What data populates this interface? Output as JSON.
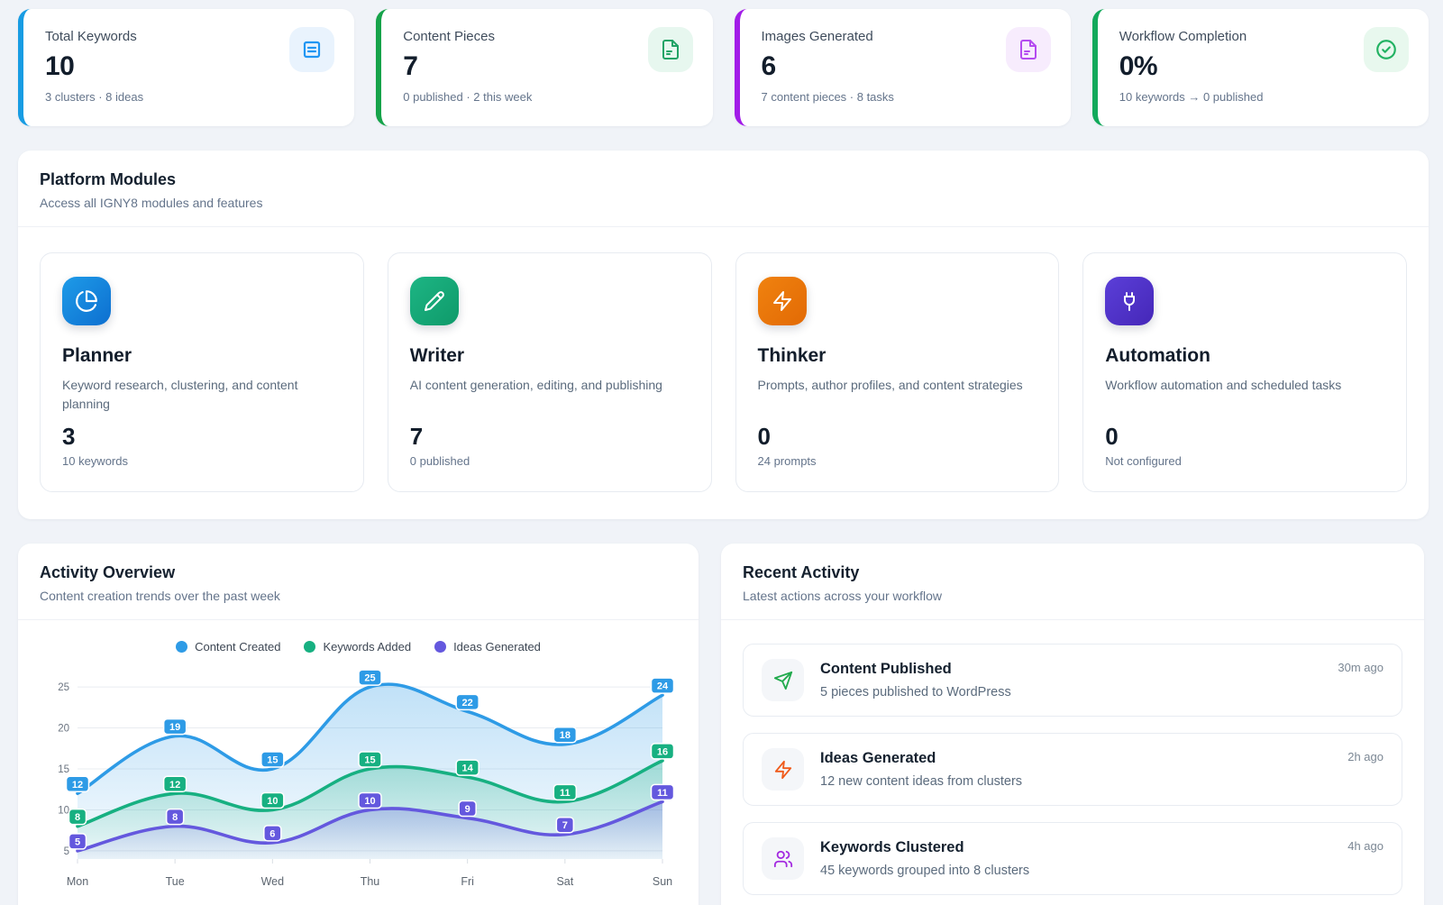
{
  "stats": [
    {
      "label": "Total Keywords",
      "value": "10",
      "caption": "3 clusters · 8 ideas",
      "accent": "#189ce3",
      "icon": "list-icon",
      "icon_color": "#2196f3",
      "icon_bg": "#e9f3fd"
    },
    {
      "label": "Content Pieces",
      "value": "7",
      "caption": "0 published · 2 this week",
      "accent": "#16a34a",
      "icon": "file-text-icon",
      "icon_color": "#21a366",
      "icon_bg": "#e7f7ef"
    },
    {
      "label": "Images Generated",
      "value": "6",
      "caption": "7 content pieces · 8 tasks",
      "accent": "#a21ce8",
      "icon": "file-text-icon",
      "icon_color": "#b44bf0",
      "icon_bg": "#f7ecfd"
    },
    {
      "label": "Workflow Completion",
      "value": "0%",
      "caption": "10 keywords → 0 published",
      "accent": "#12a95b",
      "icon": "check-circle-icon",
      "icon_color": "#22b262",
      "icon_bg": "#e8f8ee"
    }
  ],
  "modules_panel": {
    "title": "Platform Modules",
    "subtitle": "Access all IGNY8 modules and features",
    "modules": [
      {
        "name": "Planner",
        "description": "Keyword research, clustering, and content planning",
        "value": "3",
        "caption": "10 keywords",
        "icon": "pie-chart-icon",
        "gradient": [
          "#1e9be8",
          "#0d6fd0"
        ]
      },
      {
        "name": "Writer",
        "description": "AI content generation, editing, and publishing",
        "value": "7",
        "caption": "0 published",
        "icon": "pencil-icon",
        "gradient": [
          "#1db584",
          "#0f9a6a"
        ]
      },
      {
        "name": "Thinker",
        "description": "Prompts, author profiles, and content strategies",
        "value": "0",
        "caption": "24 prompts",
        "icon": "zap-icon",
        "gradient": [
          "#f0820f",
          "#e26a05"
        ]
      },
      {
        "name": "Automation",
        "description": "Workflow automation and scheduled tasks",
        "value": "0",
        "caption": "Not configured",
        "icon": "plug-icon",
        "gradient": [
          "#5b3fd8",
          "#4527b8"
        ]
      }
    ]
  },
  "activity_overview": {
    "title": "Activity Overview",
    "subtitle": "Content creation trends over the past week"
  },
  "chart_data": {
    "type": "line",
    "x": [
      "Mon",
      "Tue",
      "Wed",
      "Thu",
      "Fri",
      "Sat",
      "Sun"
    ],
    "series": [
      {
        "name": "Content Created",
        "color": "#2e9be6",
        "values": [
          12,
          19,
          15,
          25,
          22,
          18,
          24
        ]
      },
      {
        "name": "Keywords Added",
        "color": "#17b081",
        "values": [
          8,
          12,
          10,
          15,
          14,
          11,
          16
        ]
      },
      {
        "name": "Ideas Generated",
        "color": "#6458de",
        "values": [
          5,
          8,
          6,
          10,
          9,
          7,
          11
        ]
      }
    ],
    "ylim": [
      4,
      26
    ],
    "yticks": [
      5,
      10,
      15,
      20,
      25
    ],
    "grid": "horizontal",
    "legend_position": "top",
    "style": "smooth area lines with point value badges"
  },
  "recent_activity": {
    "title": "Recent Activity",
    "subtitle": "Latest actions across your workflow",
    "items": [
      {
        "title": "Content Published",
        "description": "5 pieces published to WordPress",
        "time": "30m ago",
        "icon": "send-icon",
        "icon_color": "#21aa4d"
      },
      {
        "title": "Ideas Generated",
        "description": "12 new content ideas from clusters",
        "time": "2h ago",
        "icon": "zap-icon",
        "icon_color": "#f05a1a"
      },
      {
        "title": "Keywords Clustered",
        "description": "45 keywords grouped into 8 clusters",
        "time": "4h ago",
        "icon": "users-icon",
        "icon_color": "#a32ae0"
      }
    ]
  }
}
